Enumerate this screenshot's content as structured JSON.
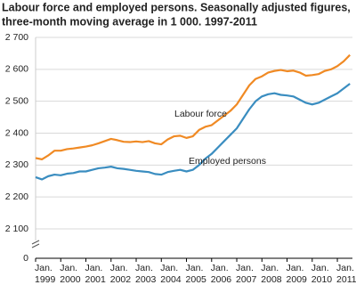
{
  "chart_data": {
    "type": "line",
    "title": [
      "Labour force and employed persons. Seasonally adjusted figures,",
      "three-month moving average in 1 000. 1997-2011"
    ],
    "x": [
      1999,
      1999.25,
      1999.5,
      1999.75,
      2000,
      2000.25,
      2000.5,
      2000.75,
      2001,
      2001.25,
      2001.5,
      2001.75,
      2002,
      2002.25,
      2002.5,
      2002.75,
      2003,
      2003.25,
      2003.5,
      2003.75,
      2004,
      2004.25,
      2004.5,
      2004.75,
      2005,
      2005.25,
      2005.5,
      2005.75,
      2006,
      2006.25,
      2006.5,
      2006.75,
      2007,
      2007.25,
      2007.5,
      2007.75,
      2008,
      2008.25,
      2008.5,
      2008.75,
      2009,
      2009.25,
      2009.5,
      2009.75,
      2010,
      2010.25,
      2010.5,
      2010.75,
      2011,
      2011.25,
      2011.5
    ],
    "series": [
      {
        "name": "Labour force",
        "color": "#f08a24",
        "values": [
          2322,
          2318,
          2330,
          2345,
          2345,
          2350,
          2352,
          2355,
          2358,
          2362,
          2368,
          2375,
          2382,
          2378,
          2373,
          2372,
          2374,
          2372,
          2375,
          2368,
          2365,
          2380,
          2390,
          2392,
          2385,
          2390,
          2410,
          2420,
          2425,
          2440,
          2455,
          2470,
          2490,
          2520,
          2550,
          2570,
          2578,
          2590,
          2595,
          2598,
          2594,
          2596,
          2590,
          2580,
          2582,
          2585,
          2595,
          2600,
          2610,
          2625,
          2645
        ]
      },
      {
        "name": "Employed persons",
        "color": "#3a8dc0",
        "values": [
          2262,
          2255,
          2265,
          2270,
          2268,
          2273,
          2275,
          2280,
          2280,
          2285,
          2290,
          2292,
          2295,
          2290,
          2288,
          2285,
          2282,
          2280,
          2278,
          2272,
          2270,
          2278,
          2282,
          2285,
          2280,
          2285,
          2300,
          2320,
          2335,
          2355,
          2375,
          2395,
          2415,
          2445,
          2475,
          2500,
          2515,
          2522,
          2525,
          2520,
          2518,
          2515,
          2505,
          2495,
          2490,
          2495,
          2505,
          2515,
          2525,
          2540,
          2555
        ]
      }
    ],
    "xlim": [
      1999,
      2011.6
    ],
    "xticks": [
      {
        "value": 1999,
        "label": [
          "Jan.",
          "1999"
        ]
      },
      {
        "value": 2000,
        "label": [
          "Jan.",
          "2000"
        ]
      },
      {
        "value": 2001,
        "label": [
          "Jan.",
          "2001"
        ]
      },
      {
        "value": 2002,
        "label": [
          "Jan.",
          "2002"
        ]
      },
      {
        "value": 2003,
        "label": [
          "Jan.",
          "2003"
        ]
      },
      {
        "value": 2004,
        "label": [
          "Jan.",
          "2004"
        ]
      },
      {
        "value": 2005,
        "label": [
          "Jan.",
          "2005"
        ]
      },
      {
        "value": 2006,
        "label": [
          "Jan.",
          "2006"
        ]
      },
      {
        "value": 2007,
        "label": [
          "Jan.",
          "2007"
        ]
      },
      {
        "value": 2008,
        "label": [
          "Jan.",
          "2008"
        ]
      },
      {
        "value": 2009,
        "label": [
          "Jan.",
          "2009"
        ]
      },
      {
        "value": 2010,
        "label": [
          "Jan.",
          "2010"
        ]
      },
      {
        "value": 2011,
        "label": [
          "Jan.",
          "2011"
        ]
      }
    ],
    "ylim": [
      0,
      2700
    ],
    "axis_break": [
      0,
      2000
    ],
    "yticks": [
      {
        "value": 0,
        "label": "0"
      },
      {
        "value": 2100,
        "label": "2 100"
      },
      {
        "value": 2200,
        "label": "2 200"
      },
      {
        "value": 2300,
        "label": "2 300"
      },
      {
        "value": 2400,
        "label": "2 400"
      },
      {
        "value": 2500,
        "label": "2 500"
      },
      {
        "value": 2600,
        "label": "2 600"
      },
      {
        "value": 2700,
        "label": "2 700"
      }
    ],
    "grid": true
  }
}
